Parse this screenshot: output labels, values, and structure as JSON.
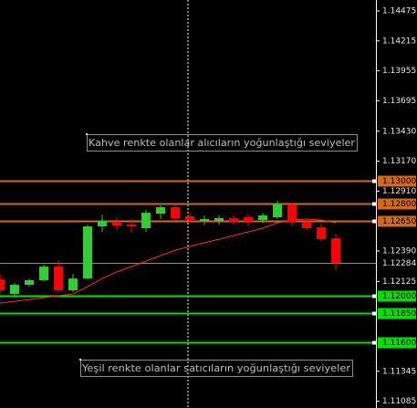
{
  "chart_data": {
    "type": "candlestick",
    "ylim": [
      1.11026,
      1.1457
    ],
    "yticks": [
      1.14475,
      1.14215,
      1.13955,
      1.13695,
      {
        "value": 1.1343,
        "label": "1.13430"
      },
      {
        "value": 1.1317,
        "label": "1.13170"
      },
      {
        "value": 1.1291,
        "label": "1.12910"
      },
      {
        "value": 1.1239,
        "label": "1.12390"
      },
      1.12125,
      1.11345,
      1.11085
    ],
    "up_color": "#32cd32",
    "down_color": "#ff0000",
    "candles": {
      "open": [
        1.12143,
        1.12017,
        1.12096,
        1.12136,
        1.12254,
        1.12048,
        1.12151,
        1.12603,
        1.12635,
        1.12619,
        1.12588,
        1.12714,
        1.1277,
        1.12691,
        1.12651,
        1.12651,
        1.12675,
        1.12683,
        1.12659,
        1.12683,
        1.12794,
        1.12643,
        1.12595,
        1.125
      ],
      "high": [
        1.12191,
        1.12112,
        1.12151,
        1.1227,
        1.1231,
        1.12191,
        1.12619,
        1.12706,
        1.12683,
        1.12667,
        1.12746,
        1.12786,
        1.12794,
        1.12714,
        1.12699,
        1.12699,
        1.12699,
        1.12706,
        1.12722,
        1.12825,
        1.1281,
        1.12667,
        1.12627,
        1.1254
      ],
      "low": [
        1.12017,
        1.11993,
        1.1208,
        1.12128,
        1.12032,
        1.12032,
        1.12143,
        1.12556,
        1.12572,
        1.12548,
        1.12556,
        1.12667,
        1.12651,
        1.12635,
        1.12619,
        1.12619,
        1.12619,
        1.12611,
        1.12635,
        1.12667,
        1.12611,
        1.12572,
        1.12477,
        1.12223
      ],
      "close": [
        1.12048,
        1.12096,
        1.12136,
        1.12254,
        1.12048,
        1.12151,
        1.12603,
        1.12651,
        1.12611,
        1.12603,
        1.12722,
        1.1277,
        1.12675,
        1.12659,
        1.12667,
        1.12675,
        1.12643,
        1.12635,
        1.12699,
        1.12794,
        1.12643,
        1.12588,
        1.12492,
        1.12284
      ]
    },
    "moving_average": {
      "color": "#ff2a2a",
      "values": [
        1.11937,
        1.11953,
        1.11969,
        1.11985,
        1.12001,
        1.12017,
        1.1208,
        1.12151,
        1.12207,
        1.12254,
        1.12302,
        1.1235,
        1.12397,
        1.12429,
        1.12461,
        1.12492,
        1.12524,
        1.12556,
        1.12588,
        1.12635,
        1.12659,
        1.12667,
        1.12659,
        1.12635
      ]
    },
    "levels": [
      {
        "value": 1.13,
        "label": "1.13000",
        "color": "#d2691e"
      },
      {
        "value": 1.128,
        "label": "1.12800",
        "color": "#d2691e"
      },
      {
        "value": 1.1265,
        "label": "1.12650",
        "color": "#d2691e"
      },
      {
        "value": 1.12,
        "label": "1.12000",
        "color": "#00e000"
      },
      {
        "value": 1.1185,
        "label": "1.11850",
        "color": "#00e000"
      },
      {
        "value": 1.116,
        "label": "1.11600",
        "color": "#00e000"
      }
    ],
    "current_price": {
      "value": 1.12284,
      "color": "#8c8c8c"
    },
    "annotations": [
      {
        "text": "Kahve renkte olanlar alıcıların yoğunlaştığı seviyeler"
      },
      {
        "text": "Yeşil renkte olanlar satıcıların yoğunlaştığı seviyeler"
      }
    ]
  }
}
